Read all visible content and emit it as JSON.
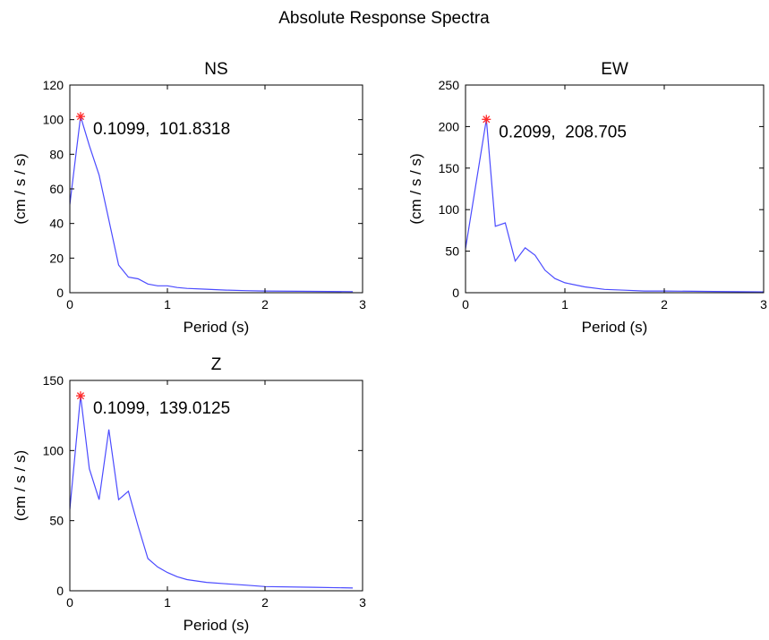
{
  "figure_title": "Absolute Response Spectra",
  "colors": {
    "line": "#4b4bff",
    "peak_marker": "#ff2a2a"
  },
  "chart_data": [
    {
      "type": "line",
      "title": "NS",
      "xlabel": "Period (s)",
      "ylabel": "(cm / s / s)",
      "xlim": [
        0,
        3
      ],
      "ylim": [
        0,
        120
      ],
      "xticks": [
        "0",
        "1",
        "2",
        "3"
      ],
      "yticks": [
        "0",
        "20",
        "40",
        "60",
        "80",
        "100",
        "120"
      ],
      "grid": false,
      "series": [
        {
          "x": [
            0,
            0.1099,
            0.2,
            0.3,
            0.4,
            0.5,
            0.6,
            0.7,
            0.8,
            0.9,
            1.0,
            1.1,
            1.2,
            1.4,
            1.6,
            1.8,
            2.0,
            2.5,
            2.9
          ],
          "y": [
            51,
            101.8318,
            85,
            68,
            42,
            16,
            9,
            8,
            5,
            4,
            4,
            3,
            2.5,
            2,
            1.5,
            1.2,
            1,
            0.8,
            0.6
          ]
        }
      ],
      "peak": {
        "x": 0.1099,
        "y": 101.8318
      },
      "annotation": "0.1099,  101.8318"
    },
    {
      "type": "line",
      "title": "EW",
      "xlabel": "Period (s)",
      "ylabel": "(cm / s / s)",
      "xlim": [
        0,
        3
      ],
      "ylim": [
        0,
        250
      ],
      "xticks": [
        "0",
        "1",
        "2",
        "3"
      ],
      "yticks": [
        "0",
        "50",
        "100",
        "150",
        "200",
        "250"
      ],
      "grid": false,
      "series": [
        {
          "x": [
            0,
            0.2099,
            0.3,
            0.4,
            0.5,
            0.6,
            0.7,
            0.8,
            0.9,
            1.0,
            1.2,
            1.4,
            1.6,
            1.8,
            2.0,
            2.5,
            3.0
          ],
          "y": [
            53,
            208.705,
            80,
            84,
            38,
            54,
            45,
            27,
            17,
            12,
            7,
            4,
            3,
            2,
            2,
            1.5,
            1
          ]
        }
      ],
      "peak": {
        "x": 0.2099,
        "y": 208.705
      },
      "annotation": "0.2099,  208.705"
    },
    {
      "type": "line",
      "title": "Z",
      "xlabel": "Period (s)",
      "ylabel": "(cm / s / s)",
      "xlim": [
        0,
        3
      ],
      "ylim": [
        0,
        150
      ],
      "xticks": [
        "0",
        "1",
        "2",
        "3"
      ],
      "yticks": [
        "0",
        "50",
        "100",
        "150"
      ],
      "grid": false,
      "series": [
        {
          "x": [
            0,
            0.1099,
            0.2,
            0.3,
            0.4,
            0.5,
            0.6,
            0.7,
            0.8,
            0.9,
            1.0,
            1.1,
            1.2,
            1.4,
            1.6,
            1.8,
            2.0,
            2.5,
            2.9
          ],
          "y": [
            58,
            139.0125,
            87,
            65,
            115,
            65,
            71,
            46,
            23,
            17,
            13,
            10,
            8,
            6,
            5,
            4,
            3,
            2.5,
            2
          ]
        }
      ],
      "peak": {
        "x": 0.1099,
        "y": 139.0125
      },
      "annotation": "0.1099,  139.0125"
    }
  ]
}
